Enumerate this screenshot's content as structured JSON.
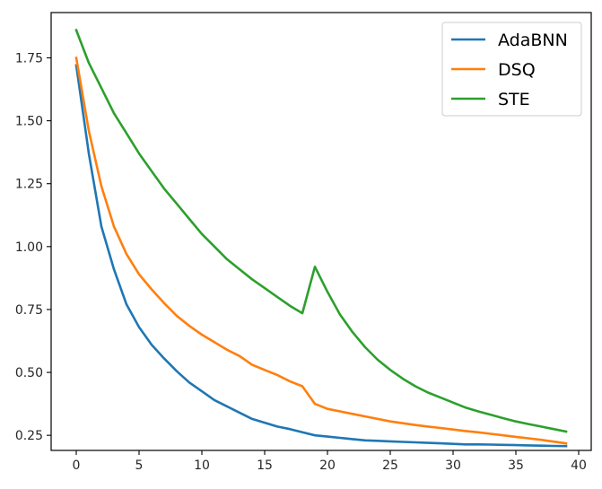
{
  "chart_data": {
    "type": "line",
    "title": "",
    "xlabel": "",
    "ylabel": "",
    "xlim": [
      -2,
      41
    ],
    "ylim": [
      0.19,
      1.93
    ],
    "xticks": [
      0,
      5,
      10,
      15,
      20,
      25,
      30,
      35,
      40
    ],
    "xtick_labels": [
      "0",
      "5",
      "10",
      "15",
      "20",
      "25",
      "30",
      "35",
      "40"
    ],
    "yticks": [
      0.25,
      0.5,
      0.75,
      1.0,
      1.25,
      1.5,
      1.75
    ],
    "ytick_labels": [
      "0.25",
      "0.50",
      "0.75",
      "1.00",
      "1.25",
      "1.50",
      "1.75"
    ],
    "grid": false,
    "legend_position": "top-right",
    "x": [
      0,
      1,
      2,
      3,
      4,
      5,
      6,
      7,
      8,
      9,
      10,
      11,
      12,
      13,
      14,
      15,
      16,
      17,
      18,
      19,
      20,
      21,
      22,
      23,
      24,
      25,
      26,
      27,
      28,
      29,
      30,
      31,
      32,
      33,
      34,
      35,
      36,
      37,
      38,
      39
    ],
    "series": [
      {
        "name": "AdaBNN",
        "color": "#1f77b4",
        "values": [
          1.72,
          1.37,
          1.08,
          0.91,
          0.77,
          0.68,
          0.61,
          0.555,
          0.505,
          0.46,
          0.425,
          0.39,
          0.365,
          0.34,
          0.315,
          0.3,
          0.285,
          0.275,
          0.262,
          0.25,
          0.245,
          0.24,
          0.235,
          0.23,
          0.228,
          0.226,
          0.224,
          0.222,
          0.22,
          0.218,
          0.216,
          0.214,
          0.214,
          0.213,
          0.212,
          0.211,
          0.21,
          0.209,
          0.208,
          0.207
        ]
      },
      {
        "name": "DSQ",
        "color": "#ff7f0e",
        "values": [
          1.75,
          1.46,
          1.24,
          1.08,
          0.97,
          0.89,
          0.83,
          0.775,
          0.725,
          0.685,
          0.65,
          0.62,
          0.59,
          0.565,
          0.53,
          0.51,
          0.49,
          0.465,
          0.445,
          0.375,
          0.355,
          0.345,
          0.335,
          0.325,
          0.315,
          0.305,
          0.298,
          0.291,
          0.285,
          0.279,
          0.273,
          0.267,
          0.262,
          0.256,
          0.25,
          0.244,
          0.238,
          0.232,
          0.225,
          0.218
        ]
      },
      {
        "name": "STE",
        "color": "#2ca02c",
        "values": [
          1.86,
          1.73,
          1.63,
          1.53,
          1.45,
          1.37,
          1.3,
          1.23,
          1.17,
          1.11,
          1.05,
          1.0,
          0.95,
          0.91,
          0.87,
          0.835,
          0.8,
          0.765,
          0.735,
          0.92,
          0.82,
          0.73,
          0.66,
          0.6,
          0.55,
          0.51,
          0.475,
          0.445,
          0.42,
          0.4,
          0.38,
          0.36,
          0.345,
          0.332,
          0.318,
          0.305,
          0.295,
          0.285,
          0.275,
          0.265
        ]
      }
    ]
  }
}
